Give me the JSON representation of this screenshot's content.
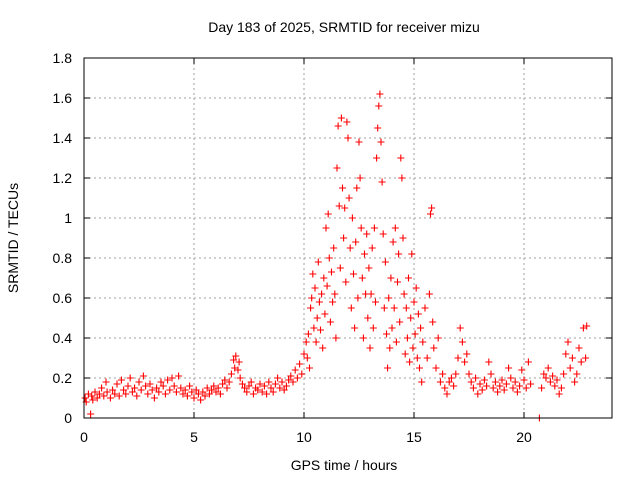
{
  "chart_data": {
    "type": "scatter",
    "title": "Day 183 of 2025, SRMTID for receiver mizu",
    "xlabel": "GPS time / hours",
    "ylabel": "SRMTID / TECUs",
    "xlim": [
      0,
      24
    ],
    "ylim": [
      0,
      1.8
    ],
    "xticks": [
      0,
      5,
      10,
      15,
      20
    ],
    "xtick_labels": [
      "0",
      "5",
      "10",
      "15",
      "20"
    ],
    "yticks": [
      0,
      0.2,
      0.4,
      0.6,
      0.8,
      1,
      1.2,
      1.4,
      1.6,
      1.8
    ],
    "ytick_labels": [
      "0",
      "0.2",
      "0.4",
      "0.6",
      "0.8",
      "1",
      "1.2",
      "1.4",
      "1.6",
      "1.8"
    ],
    "grid": true,
    "marker": "+",
    "series": [
      {
        "name": "SRMTID",
        "color": "#ff0000",
        "points": [
          [
            0.05,
            0.1
          ],
          [
            0.1,
            0.08
          ],
          [
            0.2,
            0.12
          ],
          [
            0.3,
            0.02
          ],
          [
            0.35,
            0.11
          ],
          [
            0.4,
            0.09
          ],
          [
            0.5,
            0.13
          ],
          [
            0.6,
            0.1
          ],
          [
            0.7,
            0.12
          ],
          [
            0.8,
            0.15
          ],
          [
            0.9,
            0.11
          ],
          [
            1.0,
            0.18
          ],
          [
            1.05,
            0.13
          ],
          [
            1.2,
            0.1
          ],
          [
            1.3,
            0.14
          ],
          [
            1.4,
            0.12
          ],
          [
            1.5,
            0.17
          ],
          [
            1.6,
            0.11
          ],
          [
            1.7,
            0.19
          ],
          [
            1.8,
            0.14
          ],
          [
            1.9,
            0.12
          ],
          [
            2.0,
            0.16
          ],
          [
            2.1,
            0.2
          ],
          [
            2.2,
            0.13
          ],
          [
            2.3,
            0.15
          ],
          [
            2.4,
            0.11
          ],
          [
            2.5,
            0.18
          ],
          [
            2.6,
            0.14
          ],
          [
            2.7,
            0.21
          ],
          [
            2.8,
            0.16
          ],
          [
            2.9,
            0.12
          ],
          [
            3.0,
            0.17
          ],
          [
            3.1,
            0.14
          ],
          [
            3.2,
            0.1
          ],
          [
            3.3,
            0.15
          ],
          [
            3.4,
            0.13
          ],
          [
            3.5,
            0.18
          ],
          [
            3.6,
            0.16
          ],
          [
            3.7,
            0.12
          ],
          [
            3.8,
            0.19
          ],
          [
            3.9,
            0.14
          ],
          [
            4.0,
            0.2
          ],
          [
            4.1,
            0.16
          ],
          [
            4.2,
            0.13
          ],
          [
            4.3,
            0.21
          ],
          [
            4.4,
            0.15
          ],
          [
            4.5,
            0.12
          ],
          [
            4.6,
            0.14
          ],
          [
            4.7,
            0.11
          ],
          [
            4.8,
            0.16
          ],
          [
            4.9,
            0.13
          ],
          [
            5.0,
            0.1
          ],
          [
            5.1,
            0.14
          ],
          [
            5.2,
            0.12
          ],
          [
            5.3,
            0.09
          ],
          [
            5.4,
            0.13
          ],
          [
            5.5,
            0.11
          ],
          [
            5.6,
            0.15
          ],
          [
            5.7,
            0.12
          ],
          [
            5.8,
            0.14
          ],
          [
            5.9,
            0.16
          ],
          [
            6.0,
            0.13
          ],
          [
            6.1,
            0.15
          ],
          [
            6.2,
            0.12
          ],
          [
            6.3,
            0.17
          ],
          [
            6.4,
            0.19
          ],
          [
            6.5,
            0.15
          ],
          [
            6.6,
            0.18
          ],
          [
            6.7,
            0.22
          ],
          [
            6.8,
            0.29
          ],
          [
            6.85,
            0.25
          ],
          [
            6.9,
            0.31
          ],
          [
            7.0,
            0.24
          ],
          [
            7.05,
            0.28
          ],
          [
            7.1,
            0.2
          ],
          [
            7.2,
            0.17
          ],
          [
            7.3,
            0.15
          ],
          [
            7.4,
            0.13
          ],
          [
            7.5,
            0.16
          ],
          [
            7.6,
            0.18
          ],
          [
            7.7,
            0.12
          ],
          [
            7.8,
            0.15
          ],
          [
            7.9,
            0.14
          ],
          [
            8.0,
            0.17
          ],
          [
            8.1,
            0.13
          ],
          [
            8.2,
            0.16
          ],
          [
            8.3,
            0.12
          ],
          [
            8.4,
            0.18
          ],
          [
            8.5,
            0.15
          ],
          [
            8.6,
            0.13
          ],
          [
            8.7,
            0.17
          ],
          [
            8.8,
            0.2
          ],
          [
            8.9,
            0.15
          ],
          [
            9.0,
            0.18
          ],
          [
            9.1,
            0.14
          ],
          [
            9.2,
            0.16
          ],
          [
            9.3,
            0.19
          ],
          [
            9.4,
            0.21
          ],
          [
            9.5,
            0.18
          ],
          [
            9.6,
            0.24
          ],
          [
            9.7,
            0.2
          ],
          [
            9.8,
            0.27
          ],
          [
            9.9,
            0.22
          ],
          [
            10.0,
            0.32
          ],
          [
            10.1,
            0.38
          ],
          [
            10.15,
            0.3
          ],
          [
            10.2,
            0.42
          ],
          [
            10.25,
            0.25
          ],
          [
            10.3,
            0.55
          ],
          [
            10.35,
            0.6
          ],
          [
            10.4,
            0.72
          ],
          [
            10.45,
            0.45
          ],
          [
            10.5,
            0.65
          ],
          [
            10.55,
            0.38
          ],
          [
            10.6,
            0.5
          ],
          [
            10.65,
            0.78
          ],
          [
            10.7,
            0.58
          ],
          [
            10.75,
            0.44
          ],
          [
            10.8,
            0.62
          ],
          [
            10.85,
            0.35
          ],
          [
            10.9,
            0.7
          ],
          [
            10.95,
            0.52
          ],
          [
            11.0,
            0.95
          ],
          [
            11.05,
            0.66
          ],
          [
            11.1,
            1.02
          ],
          [
            11.15,
            0.8
          ],
          [
            11.2,
            0.48
          ],
          [
            11.25,
            0.73
          ],
          [
            11.3,
            0.58
          ],
          [
            11.35,
            0.85
          ],
          [
            11.4,
            0.62
          ],
          [
            11.45,
            0.4
          ],
          [
            11.5,
            1.25
          ],
          [
            11.55,
            1.46
          ],
          [
            11.6,
            1.06
          ],
          [
            11.65,
            0.75
          ],
          [
            11.7,
            1.5
          ],
          [
            11.75,
            1.15
          ],
          [
            11.8,
            0.9
          ],
          [
            11.85,
            1.05
          ],
          [
            11.9,
            0.68
          ],
          [
            11.95,
            1.48
          ],
          [
            12.0,
            1.4
          ],
          [
            12.05,
            1.1
          ],
          [
            12.1,
            0.85
          ],
          [
            12.15,
            0.55
          ],
          [
            12.2,
            1.0
          ],
          [
            12.25,
            0.72
          ],
          [
            12.3,
            0.45
          ],
          [
            12.35,
            0.88
          ],
          [
            12.4,
            1.15
          ],
          [
            12.45,
            0.6
          ],
          [
            12.5,
            1.38
          ],
          [
            12.55,
            1.2
          ],
          [
            12.6,
            0.95
          ],
          [
            12.65,
            0.7
          ],
          [
            12.7,
            0.4
          ],
          [
            12.75,
            0.82
          ],
          [
            12.8,
            0.62
          ],
          [
            12.85,
            0.92
          ],
          [
            12.9,
            0.5
          ],
          [
            12.95,
            0.75
          ],
          [
            13.0,
            0.35
          ],
          [
            13.05,
            0.62
          ],
          [
            13.1,
            0.85
          ],
          [
            13.15,
            0.45
          ],
          [
            13.2,
            0.95
          ],
          [
            13.25,
            0.58
          ],
          [
            13.3,
            1.3
          ],
          [
            13.35,
            1.45
          ],
          [
            13.4,
            1.56
          ],
          [
            13.45,
            1.62
          ],
          [
            13.5,
            1.38
          ],
          [
            13.55,
            1.18
          ],
          [
            13.6,
            0.92
          ],
          [
            13.65,
            0.55
          ],
          [
            13.7,
            0.78
          ],
          [
            13.75,
            0.42
          ],
          [
            13.8,
            0.25
          ],
          [
            13.85,
            0.6
          ],
          [
            13.9,
            0.35
          ],
          [
            13.95,
            0.7
          ],
          [
            14.0,
            0.45
          ],
          [
            14.05,
            0.88
          ],
          [
            14.1,
            0.55
          ],
          [
            14.15,
            0.95
          ],
          [
            14.2,
            0.38
          ],
          [
            14.25,
            0.68
          ],
          [
            14.3,
            0.82
          ],
          [
            14.35,
            0.48
          ],
          [
            14.4,
            1.3
          ],
          [
            14.45,
            1.2
          ],
          [
            14.5,
            0.9
          ],
          [
            14.55,
            0.62
          ],
          [
            14.6,
            0.32
          ],
          [
            14.65,
            0.55
          ],
          [
            14.7,
            0.4
          ],
          [
            14.75,
            0.7
          ],
          [
            14.8,
            0.28
          ],
          [
            14.85,
            0.5
          ],
          [
            14.9,
            0.82
          ],
          [
            14.95,
            0.35
          ],
          [
            15.0,
            0.58
          ],
          [
            15.05,
            0.42
          ],
          [
            15.1,
            0.65
          ],
          [
            15.15,
            0.3
          ],
          [
            15.2,
            0.52
          ],
          [
            15.25,
            0.25
          ],
          [
            15.3,
            0.45
          ],
          [
            15.35,
            0.18
          ],
          [
            15.4,
            0.38
          ],
          [
            15.5,
            0.55
          ],
          [
            15.6,
            0.3
          ],
          [
            15.7,
            0.62
          ],
          [
            15.75,
            1.02
          ],
          [
            15.8,
            1.05
          ],
          [
            15.85,
            0.48
          ],
          [
            15.9,
            0.35
          ],
          [
            16.0,
            0.25
          ],
          [
            16.1,
            0.4
          ],
          [
            16.2,
            0.18
          ],
          [
            16.3,
            0.22
          ],
          [
            16.4,
            0.15
          ],
          [
            16.5,
            0.12
          ],
          [
            16.6,
            0.18
          ],
          [
            16.7,
            0.2
          ],
          [
            16.8,
            0.16
          ],
          [
            16.9,
            0.22
          ],
          [
            17.0,
            0.3
          ],
          [
            17.1,
            0.45
          ],
          [
            17.2,
            0.38
          ],
          [
            17.3,
            0.28
          ],
          [
            17.4,
            0.32
          ],
          [
            17.5,
            0.22
          ],
          [
            17.6,
            0.18
          ],
          [
            17.7,
            0.15
          ],
          [
            17.8,
            0.2
          ],
          [
            17.9,
            0.12
          ],
          [
            18.0,
            0.17
          ],
          [
            18.1,
            0.14
          ],
          [
            18.2,
            0.19
          ],
          [
            18.3,
            0.16
          ],
          [
            18.4,
            0.28
          ],
          [
            18.5,
            0.22
          ],
          [
            18.6,
            0.15
          ],
          [
            18.7,
            0.18
          ],
          [
            18.8,
            0.13
          ],
          [
            18.9,
            0.16
          ],
          [
            19.0,
            0.19
          ],
          [
            19.1,
            0.14
          ],
          [
            19.2,
            0.17
          ],
          [
            19.3,
            0.25
          ],
          [
            19.4,
            0.2
          ],
          [
            19.5,
            0.15
          ],
          [
            19.6,
            0.18
          ],
          [
            19.7,
            0.13
          ],
          [
            19.8,
            0.16
          ],
          [
            19.9,
            0.24
          ],
          [
            20.0,
            0.19
          ],
          [
            20.1,
            0.15
          ],
          [
            20.2,
            0.28
          ],
          [
            20.3,
            0.17
          ],
          [
            20.7,
            0.0
          ],
          [
            20.8,
            0.15
          ],
          [
            20.9,
            0.22
          ],
          [
            21.0,
            0.2
          ],
          [
            21.1,
            0.25
          ],
          [
            21.2,
            0.18
          ],
          [
            21.3,
            0.21
          ],
          [
            21.4,
            0.16
          ],
          [
            21.5,
            0.19
          ],
          [
            21.6,
            0.12
          ],
          [
            21.7,
            0.15
          ],
          [
            21.8,
            0.22
          ],
          [
            21.9,
            0.32
          ],
          [
            22.0,
            0.38
          ],
          [
            22.1,
            0.25
          ],
          [
            22.2,
            0.3
          ],
          [
            22.3,
            0.18
          ],
          [
            22.4,
            0.22
          ],
          [
            22.5,
            0.35
          ],
          [
            22.6,
            0.28
          ],
          [
            22.7,
            0.45
          ],
          [
            22.8,
            0.3
          ],
          [
            22.85,
            0.46
          ]
        ]
      }
    ]
  }
}
